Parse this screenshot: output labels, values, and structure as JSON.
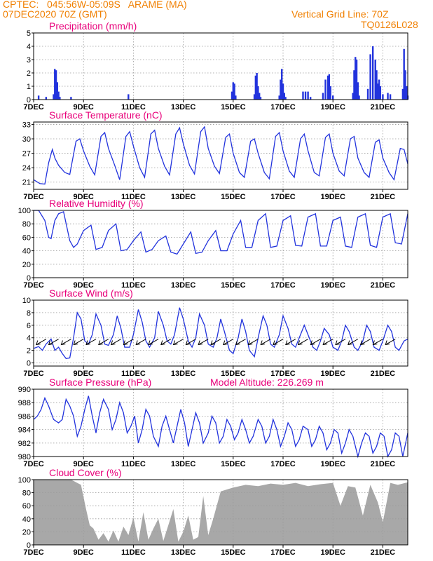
{
  "header": {
    "station": "CPTEC:   045:56W-05:09S   ARAME (MA)",
    "datetime": "07DEC2020 70Z (GMT)",
    "grid_line": "Vertical Grid Line: 70Z",
    "model": "TQ0126L028",
    "text_color": "#f07f00",
    "title_color": "#e8007a"
  },
  "colors": {
    "line": "#2233dd",
    "cloud": "#a8a8a8",
    "grid": "#9a9a9a"
  },
  "x_axis": {
    "ticks": [
      {
        "day": 0,
        "label": "7DEC"
      },
      {
        "day": 2,
        "label": "9DEC"
      },
      {
        "day": 4,
        "label": "11DEC"
      },
      {
        "day": 6,
        "label": "13DEC"
      },
      {
        "day": 8,
        "label": "15DEC"
      },
      {
        "day": 10,
        "label": "17DEC"
      },
      {
        "day": 12,
        "label": "19DEC"
      },
      {
        "day": 14,
        "label": "21DEC"
      }
    ],
    "range": [
      0,
      15
    ]
  },
  "chart_data": [
    {
      "id": "precip",
      "type": "bar",
      "title": "Precipitation (mm/h)",
      "ylim": [
        0,
        5
      ],
      "yticks": [
        0,
        1,
        2,
        3,
        4,
        5
      ],
      "x_unit": "days since 7DEC",
      "x": [
        0.2,
        0.5,
        0.8,
        0.85,
        0.9,
        0.95,
        1.0,
        1.05,
        1.5,
        3.8,
        7.95,
        8.0,
        8.05,
        8.1,
        8.85,
        8.9,
        8.95,
        9.0,
        9.05,
        9.1,
        9.85,
        9.9,
        9.95,
        10.0,
        10.05,
        10.1,
        10.8,
        10.9,
        11.0,
        11.1,
        11.6,
        11.7,
        11.8,
        11.85,
        11.9,
        12.0,
        12.8,
        12.85,
        12.9,
        12.95,
        13.0,
        13.05,
        13.4,
        13.5,
        13.6,
        13.7,
        13.75,
        13.8,
        13.85,
        13.9,
        14.0,
        14.2,
        14.3,
        14.8,
        14.85,
        14.9,
        14.95,
        15.0
      ],
      "values": [
        0.3,
        0.2,
        0.4,
        2.3,
        2.2,
        1.3,
        0.6,
        0.2,
        0.2,
        0.4,
        0.6,
        1.3,
        1.2,
        0.3,
        0.4,
        1.8,
        2.0,
        1.0,
        0.5,
        0.2,
        0.3,
        1.5,
        2.3,
        1.2,
        0.5,
        0.2,
        0.6,
        0.6,
        0.6,
        0.2,
        0.5,
        1.5,
        1.8,
        1.9,
        1.0,
        0.3,
        0.5,
        2.2,
        3.2,
        3.0,
        1.3,
        0.3,
        0.8,
        3.4,
        4.0,
        3.0,
        2.2,
        1.2,
        1.5,
        1.0,
        0.4,
        0.5,
        0.4,
        0.8,
        3.8,
        2.2,
        1.0,
        0.3
      ]
    },
    {
      "id": "temp",
      "type": "line",
      "title": "Surface Temperature (nC)",
      "ylim": [
        19.5,
        33.5
      ],
      "yticks": [
        21,
        24,
        27,
        30,
        33
      ],
      "x_unit": "days since 7DEC",
      "x": [
        0,
        0.25,
        0.45,
        0.6,
        0.75,
        0.85,
        1.0,
        1.25,
        1.45,
        1.7,
        1.85,
        2.0,
        2.25,
        2.45,
        2.7,
        2.85,
        3.0,
        3.25,
        3.45,
        3.7,
        3.85,
        4.0,
        4.25,
        4.45,
        4.7,
        4.85,
        5.0,
        5.25,
        5.45,
        5.7,
        5.85,
        6.0,
        6.25,
        6.45,
        6.7,
        6.85,
        7.0,
        7.25,
        7.45,
        7.7,
        7.85,
        8.0,
        8.25,
        8.45,
        8.7,
        8.85,
        9.0,
        9.25,
        9.45,
        9.7,
        9.85,
        10.0,
        10.25,
        10.45,
        10.7,
        10.85,
        11.0,
        11.25,
        11.45,
        11.7,
        11.85,
        12.0,
        12.25,
        12.45,
        12.7,
        12.85,
        13.0,
        13.25,
        13.45,
        13.7,
        13.85,
        14.0,
        14.25,
        14.45,
        14.7,
        14.85,
        15.0
      ],
      "values": [
        21.5,
        20.7,
        20.6,
        25.0,
        27.8,
        26.0,
        24.5,
        23.0,
        22.6,
        29.5,
        30.0,
        27.5,
        24.3,
        22.5,
        30.5,
        31.3,
        28.0,
        24.5,
        21.5,
        30.5,
        31.5,
        28.5,
        24.0,
        22.0,
        31.0,
        31.8,
        28.0,
        24.3,
        22.5,
        31.0,
        32.3,
        29.0,
        24.5,
        22.7,
        31.5,
        32.5,
        28.0,
        24.3,
        22.8,
        30.3,
        31.0,
        27.0,
        23.0,
        22.0,
        29.5,
        30.0,
        27.0,
        23.0,
        21.7,
        30.5,
        31.3,
        27.5,
        23.3,
        22.0,
        30.0,
        31.0,
        27.5,
        23.0,
        22.3,
        30.3,
        31.0,
        27.0,
        23.3,
        22.3,
        30.0,
        30.5,
        26.0,
        23.0,
        22.0,
        29.3,
        29.8,
        26.0,
        23.0,
        21.5,
        28.0,
        27.8,
        24.8
      ]
    },
    {
      "id": "rh",
      "type": "line",
      "title": "Relative Humidity (%)",
      "ylim": [
        0,
        100
      ],
      "yticks": [
        0,
        20,
        40,
        60,
        80,
        100
      ],
      "x_unit": "days since 7DEC",
      "x": [
        0,
        0.2,
        0.45,
        0.6,
        0.7,
        0.85,
        1.0,
        1.2,
        1.45,
        1.6,
        1.75,
        2.0,
        2.3,
        2.5,
        2.75,
        3.0,
        3.3,
        3.5,
        3.75,
        4.0,
        4.3,
        4.5,
        4.75,
        5.0,
        5.3,
        5.5,
        5.75,
        6.0,
        6.3,
        6.5,
        6.75,
        7.0,
        7.3,
        7.5,
        7.75,
        8.0,
        8.3,
        8.5,
        8.75,
        9.0,
        9.3,
        9.5,
        9.75,
        10.0,
        10.3,
        10.5,
        10.75,
        11.0,
        11.3,
        11.5,
        11.75,
        12.0,
        12.3,
        12.5,
        12.75,
        13.0,
        13.3,
        13.5,
        13.75,
        14.0,
        14.3,
        14.5,
        14.75,
        15.0
      ],
      "values": [
        100,
        100,
        85,
        60,
        58,
        85,
        95,
        98,
        55,
        45,
        50,
        70,
        78,
        42,
        45,
        70,
        80,
        40,
        42,
        55,
        68,
        38,
        42,
        55,
        62,
        38,
        35,
        50,
        68,
        36,
        38,
        55,
        70,
        40,
        40,
        65,
        85,
        45,
        45,
        85,
        95,
        45,
        47,
        85,
        92,
        48,
        47,
        90,
        95,
        47,
        47,
        85,
        90,
        47,
        45,
        90,
        95,
        48,
        45,
        90,
        95,
        52,
        50,
        95
      ]
    },
    {
      "id": "wind",
      "type": "line",
      "title": "Surface Wind (m/s)",
      "ylim": [
        -0.5,
        10
      ],
      "yticks": [
        0,
        2,
        4,
        6,
        8,
        10
      ],
      "x_unit": "days since 7DEC",
      "x": [
        0,
        0.2,
        0.35,
        0.5,
        0.7,
        0.85,
        1.0,
        1.15,
        1.3,
        1.45,
        1.6,
        1.75,
        1.9,
        2.05,
        2.2,
        2.35,
        2.5,
        2.7,
        2.85,
        3.0,
        3.2,
        3.35,
        3.5,
        3.65,
        3.85,
        4.0,
        4.2,
        4.35,
        4.5,
        4.65,
        4.85,
        5.0,
        5.2,
        5.35,
        5.5,
        5.65,
        5.85,
        6.0,
        6.2,
        6.35,
        6.5,
        6.65,
        6.85,
        7.0,
        7.2,
        7.35,
        7.5,
        7.65,
        7.85,
        8.0,
        8.2,
        8.35,
        8.5,
        8.65,
        8.85,
        9.0,
        9.2,
        9.35,
        9.5,
        9.65,
        9.85,
        10.0,
        10.2,
        10.35,
        10.5,
        10.65,
        10.85,
        11.0,
        11.2,
        11.35,
        11.5,
        11.65,
        11.85,
        12.0,
        12.2,
        12.35,
        12.5,
        12.65,
        12.85,
        13.0,
        13.2,
        13.35,
        13.5,
        13.65,
        13.85,
        14.0,
        14.2,
        14.35,
        14.5,
        14.65,
        14.85,
        15.0
      ],
      "values": [
        2.3,
        2.6,
        2.0,
        3.0,
        3.8,
        2.0,
        2.5,
        1.5,
        0.7,
        0.8,
        4.0,
        8.0,
        7.0,
        3.5,
        3.0,
        4.5,
        7.8,
        6.0,
        3.0,
        2.8,
        4.5,
        7.5,
        5.5,
        2.5,
        2.5,
        4.5,
        8.5,
        6.5,
        3.5,
        2.5,
        4.0,
        8.2,
        6.0,
        3.5,
        3.0,
        4.5,
        8.8,
        7.0,
        3.5,
        2.5,
        4.0,
        7.8,
        6.0,
        3.0,
        2.5,
        4.0,
        7.0,
        5.0,
        2.0,
        1.5,
        4.0,
        7.0,
        5.0,
        2.0,
        1.0,
        4.0,
        7.5,
        6.0,
        3.0,
        2.5,
        4.5,
        7.5,
        5.5,
        3.0,
        2.5,
        4.0,
        6.0,
        4.5,
        2.5,
        2.0,
        3.5,
        5.5,
        4.5,
        2.5,
        2.0,
        3.5,
        6.0,
        5.0,
        2.5,
        2.0,
        3.5,
        6.0,
        5.0,
        2.5,
        2.0,
        3.5,
        6.0,
        5.0,
        2.5,
        2.0,
        3.5,
        3.8
      ]
    },
    {
      "id": "pres",
      "type": "line",
      "title": "Surface Pressure (hPa)",
      "subtitle": "Model Altitude: 226.269 m",
      "ylim": [
        980,
        990
      ],
      "yticks": [
        980,
        982,
        984,
        986,
        988,
        990
      ],
      "x_unit": "days since 7DEC",
      "x": [
        0,
        0.15,
        0.3,
        0.45,
        0.6,
        0.8,
        1.0,
        1.15,
        1.3,
        1.45,
        1.6,
        1.75,
        1.9,
        2.05,
        2.2,
        2.35,
        2.5,
        2.65,
        2.8,
        3.0,
        3.15,
        3.3,
        3.45,
        3.6,
        3.75,
        3.9,
        4.05,
        4.2,
        4.35,
        4.5,
        4.65,
        4.8,
        5.0,
        5.15,
        5.3,
        5.45,
        5.6,
        5.75,
        5.9,
        6.05,
        6.2,
        6.35,
        6.5,
        6.65,
        6.8,
        7.0,
        7.15,
        7.3,
        7.45,
        7.6,
        7.75,
        7.9,
        8.05,
        8.2,
        8.35,
        8.5,
        8.65,
        8.8,
        9.0,
        9.15,
        9.3,
        9.45,
        9.6,
        9.75,
        9.9,
        10.05,
        10.2,
        10.35,
        10.5,
        10.65,
        10.8,
        11.0,
        11.15,
        11.3,
        11.45,
        11.6,
        11.75,
        11.9,
        12.05,
        12.2,
        12.35,
        12.5,
        12.65,
        12.8,
        13.0,
        13.15,
        13.3,
        13.45,
        13.6,
        13.75,
        13.9,
        14.05,
        14.2,
        14.35,
        14.5,
        14.65,
        14.8,
        15.0
      ],
      "values": [
        985.5,
        986.0,
        987.0,
        988.7,
        987.5,
        985.5,
        985.0,
        985.5,
        988.5,
        987.5,
        986.0,
        983.0,
        984.5,
        987.0,
        989.0,
        986.0,
        983.5,
        986.5,
        988.5,
        987.0,
        984.0,
        985.5,
        988.0,
        986.5,
        983.5,
        984.5,
        986.0,
        982.0,
        984.0,
        987.0,
        986.0,
        983.0,
        981.5,
        984.5,
        986.0,
        984.0,
        982.0,
        984.5,
        987.0,
        985.0,
        981.5,
        984.0,
        986.5,
        985.0,
        982.0,
        983.5,
        986.0,
        985.0,
        982.0,
        983.0,
        985.5,
        984.5,
        982.5,
        983.5,
        985.5,
        984.0,
        982.0,
        983.0,
        985.5,
        984.5,
        982.0,
        983.0,
        985.5,
        984.0,
        981.5,
        983.0,
        985.0,
        984.0,
        981.5,
        982.5,
        984.5,
        984.0,
        981.5,
        982.5,
        984.5,
        983.5,
        981.0,
        982.0,
        984.0,
        983.5,
        980.5,
        982.0,
        984.0,
        983.0,
        980.0,
        982.0,
        983.5,
        983.0,
        980.5,
        981.5,
        983.5,
        983.0,
        980.0,
        981.0,
        983.5,
        983.0,
        980.0,
        983.5
      ]
    },
    {
      "id": "cloud",
      "type": "area",
      "title": "Cloud Cover (%)",
      "ylim": [
        0,
        100
      ],
      "yticks": [
        0,
        20,
        40,
        60,
        80,
        100
      ],
      "x_unit": "days since 7DEC",
      "x": [
        0,
        1.5,
        1.9,
        2.1,
        2.25,
        2.4,
        2.6,
        2.8,
        3.0,
        3.2,
        3.4,
        3.6,
        3.8,
        4.0,
        4.2,
        4.4,
        4.6,
        4.8,
        5.0,
        5.2,
        5.4,
        5.6,
        5.8,
        6.0,
        6.2,
        6.4,
        6.6,
        6.8,
        7.0,
        7.2,
        7.5,
        8.0,
        8.5,
        9.0,
        9.5,
        10.0,
        10.5,
        11.0,
        11.5,
        12.0,
        12.3,
        12.6,
        12.9,
        13.2,
        13.5,
        13.8,
        14.0,
        14.3,
        14.6,
        15.0
      ],
      "values": [
        100,
        100,
        92,
        55,
        30,
        25,
        8,
        18,
        5,
        22,
        5,
        28,
        15,
        42,
        5,
        50,
        8,
        25,
        40,
        6,
        30,
        55,
        5,
        20,
        45,
        8,
        12,
        75,
        15,
        40,
        82,
        88,
        92,
        90,
        94,
        92,
        95,
        90,
        93,
        95,
        60,
        90,
        88,
        45,
        92,
        65,
        35,
        95,
        92,
        96
      ]
    }
  ]
}
